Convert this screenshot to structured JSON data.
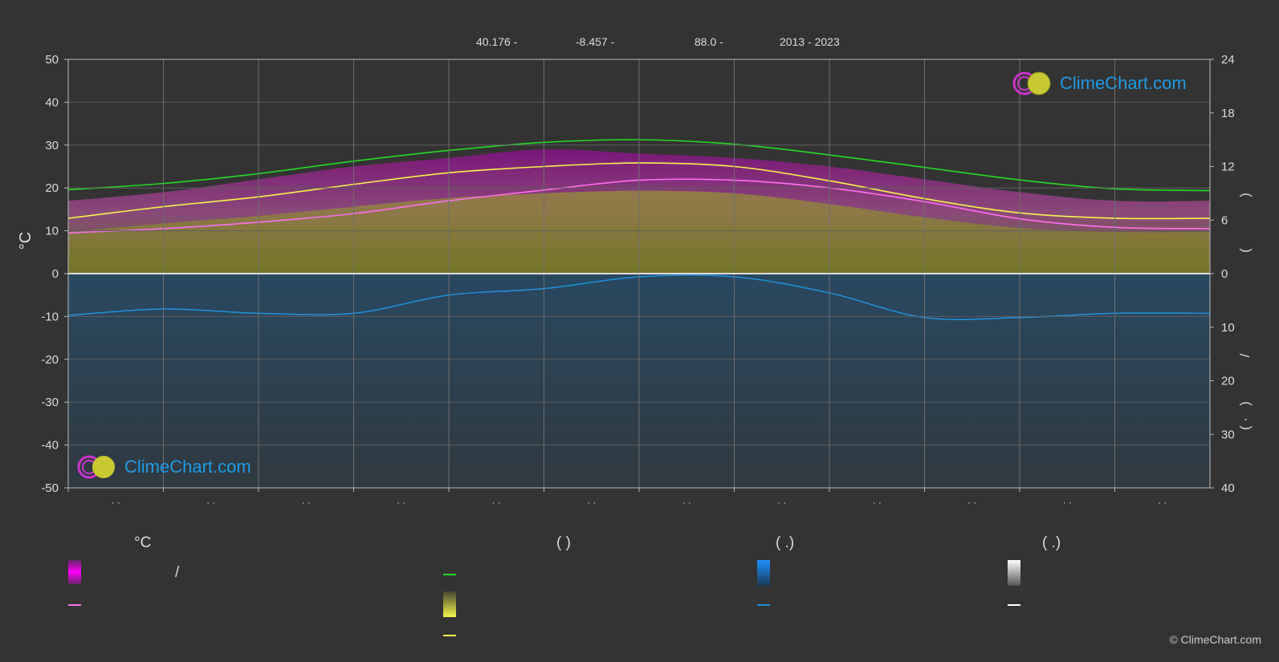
{
  "header": {
    "lat": "40.176 -",
    "lon": "-8.457 -",
    "elev": "88.0 -",
    "years": "2013 - 2023"
  },
  "left_axis_unit": "°C",
  "right_axis_labels": {
    "upper": ")",
    "upper2": "(",
    "mid": "/",
    "lower": ")",
    "lower2": "( ·"
  },
  "month_tick_text": "· ·",
  "logo_text": "ClimeChart.com",
  "copyright": "© ClimeChart.com",
  "legend": {
    "col1_title": "°C",
    "col1_row1_sep": "/",
    "col2_title": "(          )",
    "col3_title": "(    .)",
    "col4_title": "(    .)"
  },
  "colors": {
    "background": "#333333",
    "grid": "#666666",
    "daylight": "#22dd22",
    "sunshine": "#f5f54a",
    "avg_temp": "#ff6ef0",
    "max_min_band": "#e600e6",
    "precip": "#1e90d8",
    "logo_text": "#1e9bea"
  },
  "chart_data": {
    "type": "line",
    "months": 12,
    "left_axis": {
      "label": "°C",
      "ylim": [
        -50,
        50
      ],
      "ticks": [
        50,
        40,
        30,
        20,
        10,
        0,
        -10,
        -20,
        -30,
        -40,
        -50
      ]
    },
    "right_axis_upper": {
      "ylim": [
        0,
        24
      ],
      "ticks": [
        24,
        18,
        12,
        6,
        0
      ]
    },
    "right_axis_lower": {
      "ylim": [
        0,
        40
      ],
      "ticks": [
        0,
        10,
        20,
        30,
        40
      ]
    },
    "series": [
      {
        "key": "daylight_hours",
        "axis": "right_upper",
        "color": "#22dd22",
        "x": [
          0,
          1,
          2,
          3,
          4,
          5,
          6,
          7,
          8,
          9,
          10,
          11,
          12
        ],
        "values": [
          9.4,
          10.1,
          11.2,
          12.6,
          13.8,
          14.7,
          15.0,
          14.5,
          13.3,
          11.9,
          10.5,
          9.5,
          9.3
        ]
      },
      {
        "key": "sunshine_hours",
        "axis": "right_upper",
        "color": "#f5f54a",
        "x": [
          0,
          1,
          2,
          3,
          4,
          5,
          6,
          7,
          8,
          9,
          10,
          11,
          12
        ],
        "values": [
          6.2,
          7.5,
          8.6,
          10.0,
          11.3,
          12.0,
          12.4,
          12.0,
          10.4,
          8.4,
          6.8,
          6.2,
          6.2
        ]
      },
      {
        "key": "avg_temp",
        "axis": "left",
        "color": "#ff6ef0",
        "x": [
          0,
          1,
          2,
          3,
          4,
          5,
          6,
          7,
          8,
          9,
          10,
          11,
          12
        ],
        "values": [
          9.5,
          10.5,
          12.0,
          14.0,
          17.0,
          19.5,
          21.8,
          21.8,
          20.0,
          16.8,
          12.8,
          10.8,
          10.5
        ]
      },
      {
        "key": "precip_mm",
        "axis": "right_lower",
        "color": "#1e90d8",
        "x": [
          0,
          1,
          2,
          3,
          4,
          5,
          6,
          7,
          8,
          9,
          10,
          11,
          12
        ],
        "values": [
          7.8,
          6.6,
          7.4,
          7.4,
          4.0,
          2.8,
          0.6,
          0.6,
          3.6,
          8.2,
          8.2,
          7.4,
          7.4
        ]
      }
    ],
    "temp_band": {
      "max": [
        17,
        19,
        22,
        25,
        27,
        29,
        28,
        27,
        25,
        22,
        19,
        17,
        17
      ],
      "min": [
        0,
        0,
        0,
        0,
        0,
        0,
        0,
        0,
        0,
        0,
        0,
        0,
        0
      ]
    }
  }
}
